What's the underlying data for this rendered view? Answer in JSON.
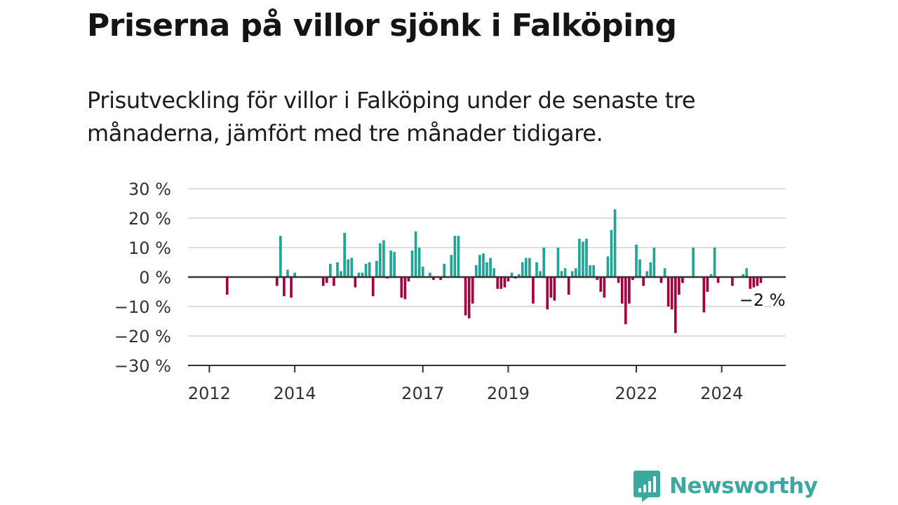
{
  "title": "Priserna på villor sjönk i Falköping",
  "subtitle": "Prisutveckling för villor i Falköping under de senaste tre månaderna, jämfört med tre månader tidigare.",
  "brand": {
    "name": "Newsworthy",
    "icon": "newsworthy-logo-icon",
    "color": "#3aa9a0"
  },
  "colors": {
    "positive": "#1fa596",
    "negative": "#a3003d",
    "gridline": "#dddddd",
    "axis": "#333333"
  },
  "chart_data": {
    "type": "bar",
    "title": "",
    "xlabel": "",
    "ylabel": "",
    "ylim": [
      -30,
      30
    ],
    "yticks": [
      30,
      20,
      10,
      0,
      -10,
      -20,
      -30
    ],
    "ytick_labels": [
      "30 %",
      "20 %",
      "10 %",
      "0 %",
      "−10 %",
      "−20 %",
      "−30 %"
    ],
    "xticks": [
      2012,
      2014,
      2017,
      2019,
      2022,
      2024
    ],
    "xlim": [
      2011.5,
      2025.5
    ],
    "grid": true,
    "legend": "none",
    "annotation": {
      "text": "−2 %",
      "x": 2025.0,
      "y": -2
    },
    "values": [
      {
        "x": 2012.4167,
        "y": -6
      },
      {
        "x": 2013.5833,
        "y": -3
      },
      {
        "x": 2013.6667,
        "y": 14
      },
      {
        "x": 2013.75,
        "y": -6.5
      },
      {
        "x": 2013.8333,
        "y": 2.5
      },
      {
        "x": 2013.9167,
        "y": -7
      },
      {
        "x": 2014.0,
        "y": 1.5
      },
      {
        "x": 2014.6667,
        "y": -3
      },
      {
        "x": 2014.75,
        "y": -2
      },
      {
        "x": 2014.8333,
        "y": 4.5
      },
      {
        "x": 2014.9167,
        "y": -3
      },
      {
        "x": 2015.0,
        "y": 5
      },
      {
        "x": 2015.0833,
        "y": 2
      },
      {
        "x": 2015.1667,
        "y": 15
      },
      {
        "x": 2015.25,
        "y": 6
      },
      {
        "x": 2015.3333,
        "y": 6.5
      },
      {
        "x": 2015.4167,
        "y": -3.5
      },
      {
        "x": 2015.5,
        "y": 1.5
      },
      {
        "x": 2015.5833,
        "y": 1.5
      },
      {
        "x": 2015.6667,
        "y": 4.5
      },
      {
        "x": 2015.75,
        "y": 5
      },
      {
        "x": 2015.8333,
        "y": -6.5
      },
      {
        "x": 2015.9167,
        "y": 5.5
      },
      {
        "x": 2016.0,
        "y": 11.5
      },
      {
        "x": 2016.0833,
        "y": 12.5
      },
      {
        "x": 2016.1667,
        "y": -0.5
      },
      {
        "x": 2016.25,
        "y": 9
      },
      {
        "x": 2016.3333,
        "y": 8.5
      },
      {
        "x": 2016.5,
        "y": -7
      },
      {
        "x": 2016.5833,
        "y": -7.5
      },
      {
        "x": 2016.6667,
        "y": -1.5
      },
      {
        "x": 2016.75,
        "y": 9
      },
      {
        "x": 2016.8333,
        "y": 15.5
      },
      {
        "x": 2016.9167,
        "y": 10
      },
      {
        "x": 2017.0,
        "y": 3.5
      },
      {
        "x": 2017.1667,
        "y": 1.5
      },
      {
        "x": 2017.25,
        "y": -1
      },
      {
        "x": 2017.4167,
        "y": -1
      },
      {
        "x": 2017.5,
        "y": 4.5
      },
      {
        "x": 2017.6667,
        "y": 7.5
      },
      {
        "x": 2017.75,
        "y": 14
      },
      {
        "x": 2017.8333,
        "y": 14
      },
      {
        "x": 2018.0,
        "y": -13
      },
      {
        "x": 2018.0833,
        "y": -14
      },
      {
        "x": 2018.1667,
        "y": -9
      },
      {
        "x": 2018.25,
        "y": 4
      },
      {
        "x": 2018.3333,
        "y": 7.5
      },
      {
        "x": 2018.4167,
        "y": 8
      },
      {
        "x": 2018.5,
        "y": 5
      },
      {
        "x": 2018.5833,
        "y": 6.5
      },
      {
        "x": 2018.6667,
        "y": 3
      },
      {
        "x": 2018.75,
        "y": -4
      },
      {
        "x": 2018.8333,
        "y": -4
      },
      {
        "x": 2018.9167,
        "y": -3.5
      },
      {
        "x": 2019.0,
        "y": -1.5
      },
      {
        "x": 2019.0833,
        "y": 1.5
      },
      {
        "x": 2019.1667,
        "y": -0.5
      },
      {
        "x": 2019.25,
        "y": 1
      },
      {
        "x": 2019.3333,
        "y": 5
      },
      {
        "x": 2019.4167,
        "y": 6.5
      },
      {
        "x": 2019.5,
        "y": 6.5
      },
      {
        "x": 2019.5833,
        "y": -9
      },
      {
        "x": 2019.6667,
        "y": 5
      },
      {
        "x": 2019.75,
        "y": 2
      },
      {
        "x": 2019.8333,
        "y": 10
      },
      {
        "x": 2019.9167,
        "y": -11
      },
      {
        "x": 2020.0,
        "y": -7
      },
      {
        "x": 2020.0833,
        "y": -8
      },
      {
        "x": 2020.1667,
        "y": 10
      },
      {
        "x": 2020.25,
        "y": 2
      },
      {
        "x": 2020.3333,
        "y": 3
      },
      {
        "x": 2020.4167,
        "y": -6
      },
      {
        "x": 2020.5,
        "y": 2
      },
      {
        "x": 2020.5833,
        "y": 3
      },
      {
        "x": 2020.6667,
        "y": 13
      },
      {
        "x": 2020.75,
        "y": 12
      },
      {
        "x": 2020.8333,
        "y": 13
      },
      {
        "x": 2020.9167,
        "y": 4
      },
      {
        "x": 2021.0,
        "y": 4
      },
      {
        "x": 2021.0833,
        "y": -1
      },
      {
        "x": 2021.1667,
        "y": -5
      },
      {
        "x": 2021.25,
        "y": -7
      },
      {
        "x": 2021.3333,
        "y": 7
      },
      {
        "x": 2021.4167,
        "y": 16
      },
      {
        "x": 2021.5,
        "y": 23
      },
      {
        "x": 2021.5833,
        "y": -2
      },
      {
        "x": 2021.6667,
        "y": -9
      },
      {
        "x": 2021.75,
        "y": -16
      },
      {
        "x": 2021.8333,
        "y": -9
      },
      {
        "x": 2021.9167,
        "y": -1
      },
      {
        "x": 2022.0,
        "y": 11
      },
      {
        "x": 2022.0833,
        "y": 6
      },
      {
        "x": 2022.1667,
        "y": -3
      },
      {
        "x": 2022.25,
        "y": 2
      },
      {
        "x": 2022.3333,
        "y": 5
      },
      {
        "x": 2022.4167,
        "y": 10
      },
      {
        "x": 2022.5833,
        "y": -2
      },
      {
        "x": 2022.6667,
        "y": 3
      },
      {
        "x": 2022.75,
        "y": -10
      },
      {
        "x": 2022.8333,
        "y": -11
      },
      {
        "x": 2022.9167,
        "y": -19
      },
      {
        "x": 2023.0,
        "y": -6
      },
      {
        "x": 2023.0833,
        "y": -2
      },
      {
        "x": 2023.3333,
        "y": 10
      },
      {
        "x": 2023.5833,
        "y": -12
      },
      {
        "x": 2023.6667,
        "y": -5
      },
      {
        "x": 2023.75,
        "y": 1
      },
      {
        "x": 2023.8333,
        "y": 10
      },
      {
        "x": 2023.9167,
        "y": -2
      },
      {
        "x": 2024.25,
        "y": -3
      },
      {
        "x": 2024.5,
        "y": 1
      },
      {
        "x": 2024.5833,
        "y": 3
      },
      {
        "x": 2024.6667,
        "y": -4
      },
      {
        "x": 2024.75,
        "y": -3.5
      },
      {
        "x": 2024.8333,
        "y": -3
      },
      {
        "x": 2024.9167,
        "y": -2
      }
    ]
  }
}
